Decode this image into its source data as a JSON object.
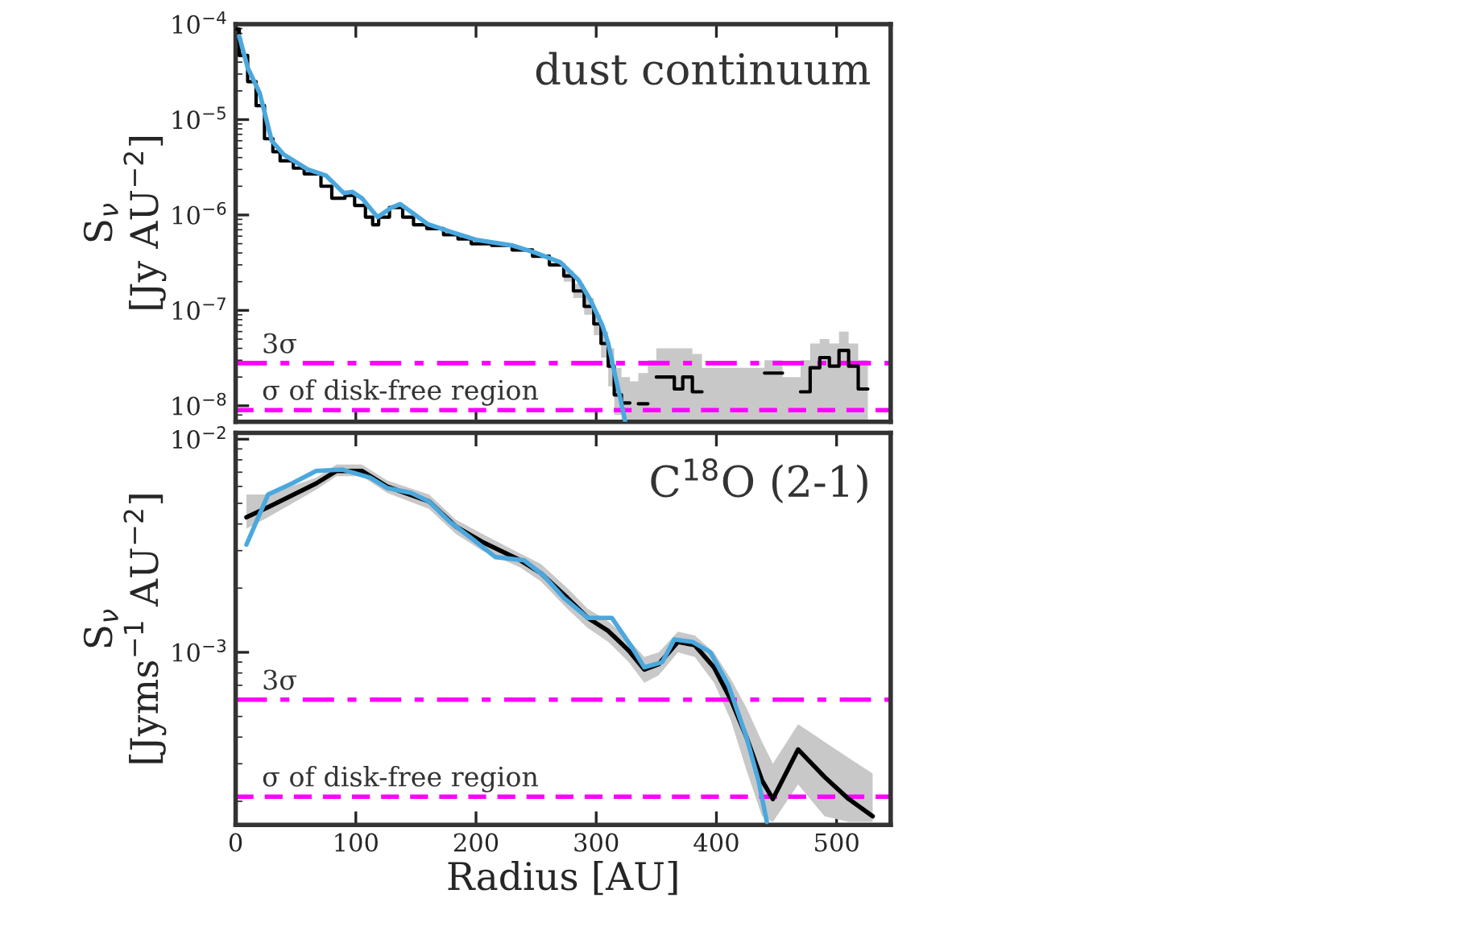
{
  "chart_data": [
    {
      "type": "step",
      "log": "y",
      "xlim": [
        0,
        545
      ],
      "ylim": [
        6.8e-09,
        0.0001
      ],
      "xticks": [
        0,
        100,
        200,
        300,
        400,
        500
      ],
      "yticks": [
        {
          "value": 1e-08,
          "label": "10$^{−8}$"
        },
        {
          "value": 1e-07,
          "label": "10$^{−7}$"
        },
        {
          "value": 1e-06,
          "label": "10$^{−6}$"
        },
        {
          "value": 1e-05,
          "label": "10$^{−5}$"
        },
        {
          "value": 0.0001,
          "label": "10$^{−4}$"
        }
      ],
      "tick_labels": "y",
      "grid": false,
      "legend": false,
      "ylabel": "S$_{ν}$\n[Jy AU$^{−2}$]",
      "annotations": [
        "dust continuum"
      ],
      "ref_lines": [
        {
          "axis": "y",
          "value": 2.8e-08,
          "label": "3σ",
          "color": "#ff00ff",
          "line_style": "dashdot"
        },
        {
          "axis": "y",
          "value": 9e-09,
          "label": "σ of disk-free region",
          "color": "#ff00ff",
          "line_style": "dashed"
        }
      ],
      "series": [
        {
          "color": "#000000",
          "x": [
            0,
            3,
            10,
            17,
            24,
            31,
            37,
            48,
            57,
            71,
            80,
            91,
            99,
            108,
            114,
            119,
            128,
            139,
            148,
            159,
            173,
            185,
            196,
            213,
            230,
            247,
            261,
            273,
            281,
            290,
            298,
            304,
            310,
            315,
            321,
            328,
            335,
            343,
            350,
            365,
            372,
            380,
            388,
            440,
            455,
            470,
            478,
            486,
            494,
            502,
            510,
            518,
            526
          ],
          "values": [
            8.9e-05,
            4.7e-05,
            2.5e-05,
            1.4e-05,
            6.3e-06,
            4.6e-06,
            3.7e-06,
            3.1e-06,
            2.7e-06,
            2e-06,
            1.5e-06,
            1.6e-06,
            1.26e-06,
            9.5e-07,
            7.9e-07,
            9.5e-07,
            1.2e-06,
            9.5e-07,
            7.9e-07,
            7.2e-07,
            6.2e-07,
            5.6e-07,
            5e-07,
            4.8e-07,
            4.3e-07,
            3.7e-07,
            3e-07,
            2.3e-07,
            1.6e-07,
            1.1e-07,
            7.2e-08,
            4.5e-08,
            2.6e-08,
            1.3e-08,
            1.07e-08,
            null,
            1.05e-08,
            null,
            2e-08,
            1.5e-08,
            2e-08,
            1.4e-08,
            null,
            2.2e-08,
            null,
            1.4e-08,
            2.5e-08,
            3.2e-08,
            2.6e-08,
            3.8e-08,
            2.6e-08,
            1.5e-08,
            1.5e-08
          ],
          "lower": [
            null,
            null,
            null,
            null,
            null,
            null,
            null,
            null,
            null,
            null,
            null,
            null,
            null,
            null,
            null,
            null,
            null,
            null,
            null,
            null,
            null,
            null,
            null,
            null,
            null,
            null,
            null,
            2e-07,
            1.35e-07,
            9e-08,
            5.5e-08,
            3.2e-08,
            1.6e-08,
            8e-09,
            7.1e-09,
            7.1e-09,
            7.1e-09,
            7.1e-09,
            7.1e-09,
            7.1e-09,
            7.1e-09,
            7.1e-09,
            7.1e-09,
            7.1e-09,
            7.1e-09,
            7.1e-09,
            7.1e-09,
            7.1e-09,
            7.1e-09,
            7.1e-09,
            7.1e-09,
            7.1e-09,
            7.1e-09
          ],
          "upper": [
            null,
            null,
            null,
            null,
            null,
            null,
            null,
            null,
            null,
            null,
            null,
            null,
            null,
            null,
            null,
            null,
            null,
            null,
            null,
            null,
            null,
            null,
            null,
            null,
            null,
            null,
            null,
            2.6e-07,
            1.9e-07,
            1.35e-07,
            9e-08,
            6e-08,
            4e-08,
            2.5e-08,
            2e-08,
            1.8e-08,
            2.2e-08,
            3e-08,
            4e-08,
            4e-08,
            4e-08,
            3.5e-08,
            2.5e-08,
            3e-08,
            2e-08,
            3e-08,
            4.5e-08,
            5e-08,
            4.5e-08,
            6e-08,
            4.5e-08,
            3e-08,
            2e-08
          ]
        },
        {
          "type": "line",
          "color": "#4aa8de",
          "x": [
            3,
            10,
            20,
            30,
            40,
            60,
            75,
            90,
            97,
            105,
            118,
            130,
            137,
            145,
            160,
            180,
            200,
            230,
            250,
            270,
            285,
            295,
            305,
            310,
            315,
            320,
            324
          ],
          "values": [
            7.5e-05,
            3.5e-05,
            1.9e-05,
            6e-06,
            4.3e-06,
            3e-06,
            2.6e-06,
            1.7e-06,
            1.75e-06,
            1.5e-06,
            9.5e-07,
            1.2e-06,
            1.3e-06,
            1.1e-06,
            8e-07,
            6.6e-07,
            5.5e-07,
            4.8e-07,
            4e-07,
            3.2e-07,
            2.1e-07,
            1.3e-07,
            7e-08,
            4.5e-08,
            2.3e-08,
            1.2e-08,
            7e-09
          ]
        }
      ]
    },
    {
      "type": "line",
      "log": "y",
      "xlim": [
        0,
        545
      ],
      "ylim": [
        0.000155,
        0.0107
      ],
      "xticks": [
        0,
        100,
        200,
        300,
        400,
        500
      ],
      "yticks": [
        {
          "value": 0.001,
          "label": "10$^{−3}$"
        },
        {
          "value": 0.01,
          "label": "10$^{−2}$"
        }
      ],
      "grid": false,
      "legend": false,
      "xlabel": "Radius [AU]",
      "ylabel": "S$_{ν}$\n[Jyms$^{−1}$ AU$^{−2}$]",
      "annotations": [
        "C$^{18}$O (2-1)"
      ],
      "ref_lines": [
        {
          "axis": "y",
          "value": 0.0006,
          "label": "3σ",
          "color": "#ff00ff",
          "line_style": "dashdot"
        },
        {
          "axis": "y",
          "value": 0.00021,
          "label": "σ of disk-free region",
          "color": "#ff00ff",
          "line_style": "dashed"
        }
      ],
      "series": [
        {
          "color": "#000000",
          "x": [
            9,
            27,
            67,
            84,
            105,
            126,
            161,
            183,
            205,
            237,
            254,
            276,
            293,
            310,
            327,
            340,
            352,
            368,
            382,
            398,
            412,
            425,
            438,
            447,
            468,
            490,
            510,
            530
          ],
          "values": [
            0.0043,
            0.0048,
            0.0062,
            0.0071,
            0.0071,
            0.006,
            0.0051,
            0.0039,
            0.0033,
            0.0027,
            0.00235,
            0.0018,
            0.00145,
            0.00126,
            0.00102,
            0.00083,
            0.00088,
            0.00112,
            0.00108,
            0.00085,
            0.0006,
            0.0004,
            0.00025,
            0.000205,
            0.00035,
            0.00026,
            0.000205,
            0.00017
          ],
          "lower": [
            0.0038,
            0.0043,
            0.0058,
            0.0067,
            0.0067,
            0.0056,
            0.0047,
            0.0036,
            0.003,
            0.0025,
            0.00215,
            0.0016,
            0.0013,
            0.00112,
            0.0009,
            0.00072,
            0.00078,
            0.001,
            0.00095,
            0.00072,
            0.00048,
            0.00028,
            0.00017,
            0.00016,
            0.00024,
            0.00017,
            0.00016,
            0.00016
          ],
          "upper": [
            0.0055,
            0.0055,
            0.0066,
            0.0076,
            0.0076,
            0.0064,
            0.0055,
            0.0042,
            0.0036,
            0.0029,
            0.0026,
            0.002,
            0.0016,
            0.0014,
            0.00115,
            0.00095,
            0.001,
            0.00125,
            0.0012,
            0.001,
            0.00075,
            0.00055,
            0.00038,
            0.0003,
            0.00046,
            0.00038,
            0.00032,
            0.00027
          ]
        },
        {
          "color": "#4aa8de",
          "x": [
            9,
            27,
            47,
            67,
            89,
            112,
            126,
            146,
            161,
            178,
            197,
            216,
            240,
            256,
            273,
            293,
            313,
            330,
            340,
            355,
            365,
            380,
            395,
            410,
            425,
            435,
            442
          ],
          "values": [
            0.0032,
            0.0055,
            0.0062,
            0.0071,
            0.0072,
            0.0066,
            0.0059,
            0.0056,
            0.0051,
            0.0041,
            0.0034,
            0.0028,
            0.0027,
            0.0023,
            0.0018,
            0.00145,
            0.00145,
            0.00105,
            0.00085,
            0.0009,
            0.00115,
            0.00112,
            0.001,
            0.0007,
            0.0004,
            0.00025,
            0.00016
          ]
        }
      ]
    }
  ]
}
